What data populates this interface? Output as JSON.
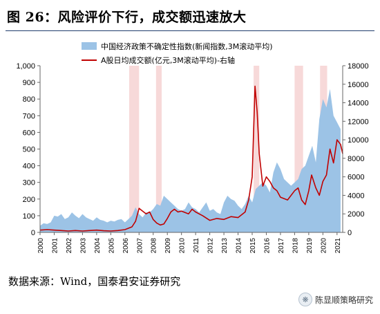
{
  "header": {
    "title": "图 26：风险评价下行，成交额迅速放大"
  },
  "footer": {
    "source": "数据来源：Wind，国泰君安证券研究"
  },
  "watermark": {
    "text": "陈显顺策略研究",
    "icon": "wechat-icon"
  },
  "colors": {
    "area": "#9cc3e6",
    "line": "#c00000",
    "shade": "#f4cccc",
    "title_rule": "#1f3b6b"
  },
  "chart_data": {
    "type": "area",
    "title": "",
    "xlabel": "",
    "ylabel_left": "",
    "ylabel_right": "",
    "x_tick_labels": [
      "2000",
      "2001",
      "2002",
      "2003",
      "2004",
      "2005",
      "2006",
      "2007",
      "2008",
      "2009",
      "2010",
      "2011",
      "2012",
      "2013",
      "2014",
      "2015",
      "2016",
      "2017",
      "2018",
      "2019",
      "2020",
      "2021"
    ],
    "y_left_ticks": [
      "0",
      "100",
      "200",
      "300",
      "400",
      "500",
      "600",
      "700",
      "800",
      "900",
      "1,000"
    ],
    "y_right_ticks": [
      "0",
      "2000",
      "4000",
      "6000",
      "8000",
      "10000",
      "12000",
      "14000",
      "16000",
      "18000"
    ],
    "xlim": [
      2000,
      2021.4
    ],
    "ylim_left": [
      0,
      1000
    ],
    "ylim_right": [
      0,
      18000
    ],
    "grid": false,
    "legend_placement": "top-center",
    "shaded_periods": [
      [
        2006.3,
        2007.0
      ],
      [
        2008.2,
        2008.6
      ],
      [
        2015.1,
        2015.5
      ],
      [
        2018.0,
        2018.6
      ],
      [
        2019.8,
        2020.3
      ]
    ],
    "series": [
      {
        "name": "中国经济政策不确定性指数(新闻指数,3M滚动平均)",
        "axis": "left",
        "type": "area",
        "x": [
          2000.0,
          2000.25,
          2000.5,
          2000.75,
          2001.0,
          2001.25,
          2001.5,
          2001.75,
          2002.0,
          2002.25,
          2002.5,
          2002.75,
          2003.0,
          2003.25,
          2003.5,
          2003.75,
          2004.0,
          2004.25,
          2004.5,
          2004.75,
          2005.0,
          2005.25,
          2005.5,
          2005.75,
          2006.0,
          2006.25,
          2006.5,
          2006.75,
          2007.0,
          2007.25,
          2007.5,
          2007.75,
          2008.0,
          2008.25,
          2008.5,
          2008.75,
          2009.0,
          2009.25,
          2009.5,
          2009.75,
          2010.0,
          2010.25,
          2010.5,
          2010.75,
          2011.0,
          2011.25,
          2011.5,
          2011.75,
          2012.0,
          2012.25,
          2012.5,
          2012.75,
          2013.0,
          2013.25,
          2013.5,
          2013.75,
          2014.0,
          2014.25,
          2014.5,
          2014.75,
          2015.0,
          2015.25,
          2015.5,
          2015.75,
          2016.0,
          2016.25,
          2016.5,
          2016.75,
          2017.0,
          2017.25,
          2017.5,
          2017.75,
          2018.0,
          2018.25,
          2018.5,
          2018.75,
          2019.0,
          2019.25,
          2019.5,
          2019.75,
          2020.0,
          2020.25,
          2020.5,
          2020.75,
          2021.0,
          2021.25
        ],
        "values": [
          40,
          55,
          50,
          60,
          100,
          95,
          110,
          80,
          90,
          120,
          100,
          85,
          110,
          90,
          80,
          70,
          90,
          75,
          70,
          60,
          70,
          65,
          75,
          80,
          60,
          80,
          100,
          150,
          110,
          90,
          120,
          120,
          140,
          170,
          160,
          220,
          200,
          180,
          160,
          140,
          130,
          140,
          180,
          150,
          140,
          120,
          150,
          180,
          130,
          140,
          120,
          110,
          180,
          220,
          200,
          190,
          160,
          140,
          170,
          220,
          180,
          260,
          280,
          300,
          280,
          240,
          360,
          420,
          380,
          320,
          300,
          280,
          300,
          320,
          380,
          400,
          460,
          520,
          420,
          680,
          800,
          750,
          860,
          700,
          660,
          620
        ]
      },
      {
        "name": "A股日均成交额(亿元,3M滚动平均)-右轴",
        "axis": "right",
        "type": "line",
        "x": [
          2000.0,
          2000.5,
          2001.0,
          2001.5,
          2002.0,
          2002.5,
          2003.0,
          2003.5,
          2004.0,
          2004.5,
          2005.0,
          2005.5,
          2006.0,
          2006.5,
          2006.75,
          2007.0,
          2007.25,
          2007.5,
          2007.75,
          2008.0,
          2008.25,
          2008.5,
          2008.75,
          2009.0,
          2009.25,
          2009.5,
          2009.75,
          2010.0,
          2010.5,
          2010.75,
          2011.0,
          2011.5,
          2012.0,
          2012.5,
          2013.0,
          2013.5,
          2014.0,
          2014.5,
          2014.75,
          2015.0,
          2015.2,
          2015.35,
          2015.5,
          2015.75,
          2016.0,
          2016.25,
          2016.5,
          2016.75,
          2017.0,
          2017.5,
          2018.0,
          2018.25,
          2018.5,
          2018.75,
          2019.0,
          2019.2,
          2019.5,
          2019.75,
          2020.0,
          2020.25,
          2020.5,
          2020.75,
          2021.0,
          2021.25,
          2021.4
        ],
        "values": [
          250,
          300,
          250,
          200,
          150,
          200,
          150,
          200,
          250,
          180,
          150,
          200,
          300,
          600,
          1200,
          2600,
          2300,
          2000,
          2200,
          1400,
          1000,
          800,
          900,
          1500,
          2200,
          2500,
          2200,
          2300,
          2000,
          2500,
          2200,
          1800,
          1300,
          1500,
          1400,
          1700,
          1600,
          2200,
          3500,
          6000,
          15800,
          13000,
          8500,
          5000,
          6000,
          5500,
          4800,
          4500,
          3800,
          3500,
          4500,
          4800,
          3500,
          3000,
          4500,
          6200,
          4800,
          4000,
          5500,
          6200,
          9000,
          7500,
          10000,
          9500,
          8500
        ]
      }
    ]
  }
}
